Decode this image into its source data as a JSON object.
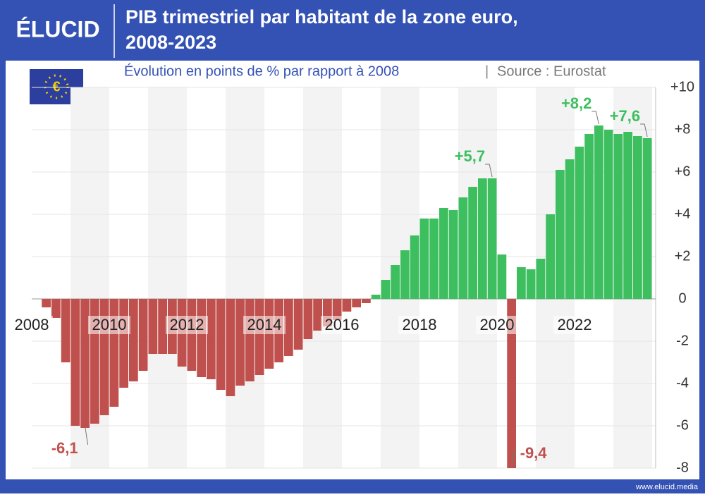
{
  "header": {
    "logo": "ÉLUCID",
    "footer": "www.elucid.media"
  },
  "chart_data": {
    "type": "bar",
    "title": [
      "PIB trimestriel par habitant de la zone euro,",
      "2008-2023"
    ],
    "subtitle": "Évolution en points de % par rapport à 2008",
    "source": "Source : Eurostat",
    "categories": [
      "2008",
      null,
      null,
      null,
      null,
      null,
      null,
      null,
      "2010",
      null,
      null,
      null,
      null,
      null,
      null,
      null,
      "2012",
      null,
      null,
      null,
      null,
      null,
      null,
      null,
      "2014",
      null,
      null,
      null,
      null,
      null,
      null,
      null,
      "2016",
      null,
      null,
      null,
      null,
      null,
      null,
      null,
      "2018",
      null,
      null,
      null,
      null,
      null,
      null,
      null,
      "2020",
      null,
      null,
      null,
      null,
      null,
      null,
      null,
      "2022",
      null,
      null,
      null,
      null,
      null,
      null,
      null
    ],
    "values": [
      0,
      -0.4,
      -0.9,
      -3.0,
      -6.0,
      -6.1,
      -5.9,
      -5.5,
      -5.1,
      -4.2,
      -3.9,
      -3.4,
      -2.6,
      -2.6,
      -2.6,
      -3.2,
      -3.4,
      -3.7,
      -3.8,
      -4.3,
      -4.6,
      -4.1,
      -3.9,
      -3.6,
      -3.3,
      -3.0,
      -2.7,
      -2.4,
      -1.9,
      -1.5,
      -1.3,
      -1.0,
      -0.6,
      -0.4,
      -0.2,
      0.2,
      0.9,
      1.6,
      2.3,
      3.0,
      3.8,
      3.8,
      4.3,
      4.2,
      4.8,
      5.3,
      5.7,
      5.7,
      2.1,
      -9.4,
      1.5,
      1.4,
      1.9,
      4.0,
      6.1,
      6.6,
      7.2,
      7.8,
      8.2,
      8.0,
      7.8,
      7.9,
      7.7,
      7.6
    ],
    "value_labels": [
      null,
      null,
      null,
      null,
      null,
      "-6,1",
      null,
      null,
      null,
      null,
      null,
      null,
      null,
      null,
      null,
      null,
      null,
      null,
      null,
      null,
      null,
      null,
      null,
      null,
      null,
      null,
      null,
      null,
      null,
      null,
      null,
      null,
      null,
      null,
      null,
      null,
      null,
      null,
      null,
      null,
      null,
      null,
      null,
      null,
      null,
      null,
      null,
      "+5,7",
      null,
      "-9,4",
      null,
      null,
      null,
      null,
      null,
      null,
      null,
      null,
      "+8,2",
      null,
      null,
      null,
      null,
      "+7,6"
    ],
    "positive_color": "#3dbf60",
    "negative_color": "#c0504d",
    "ylim": [
      -8,
      10
    ],
    "yticks": [
      {
        "value": 10,
        "label": "+10"
      },
      {
        "value": 8,
        "label": "+8"
      },
      {
        "value": 6,
        "label": "+6"
      },
      {
        "value": 4,
        "label": "+4"
      },
      {
        "value": 2,
        "label": "+2"
      },
      0,
      -2,
      -4,
      -6,
      -8
    ],
    "grid": true
  }
}
